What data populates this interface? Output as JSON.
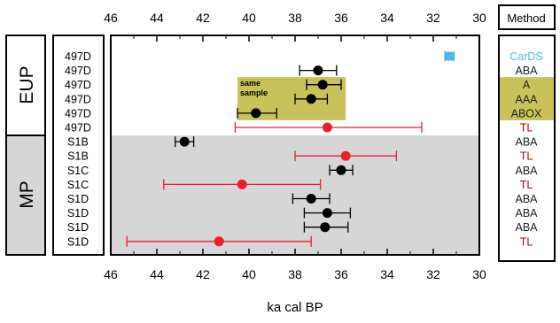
{
  "chart_data": {
    "type": "scatter",
    "title": "",
    "xlabel": "ka cal BP",
    "ylabel": "",
    "xlim": [
      46,
      30
    ],
    "x_reversed": true,
    "x_ticks": [
      46,
      44,
      42,
      40,
      38,
      36,
      34,
      32,
      30
    ],
    "x_tick_labels": [
      "46",
      "44",
      "42",
      "40",
      "38",
      "36",
      "34",
      "32",
      "30"
    ],
    "grid": false,
    "method_header": "Method",
    "periods": [
      {
        "label": "EUP",
        "shaded": false,
        "rows": [
          1,
          6
        ]
      },
      {
        "label": "MP",
        "shaded": true,
        "rows": [
          7,
          14
        ]
      }
    ],
    "highlight": {
      "label": "same sample",
      "rows": [
        3,
        5
      ],
      "x_from": 40.5,
      "x_to": 35.8
    },
    "rows": [
      {
        "sample": "497D",
        "method": "CarDS",
        "method_color": "#4fb8e8",
        "value": 31.3,
        "err_low": 31.5,
        "err_high": 31.1,
        "marker_color": "#4fb8e8",
        "marker": "box"
      },
      {
        "sample": "497D",
        "method": "ABA",
        "method_color": "#222222",
        "value": 37.0,
        "err_low": 37.8,
        "err_high": 36.2,
        "marker_color": "#000000",
        "marker": "dot"
      },
      {
        "sample": "497D",
        "method": "A",
        "method_color": "#222222",
        "value": 36.8,
        "err_low": 37.5,
        "err_high": 36.0,
        "marker_color": "#000000",
        "marker": "dot"
      },
      {
        "sample": "497D",
        "method": "AAA",
        "method_color": "#222222",
        "value": 37.3,
        "err_low": 38.0,
        "err_high": 36.6,
        "marker_color": "#000000",
        "marker": "dot"
      },
      {
        "sample": "497D",
        "method": "ABOX",
        "method_color": "#222222",
        "value": 39.7,
        "err_low": 40.5,
        "err_high": 38.8,
        "marker_color": "#000000",
        "marker": "dot"
      },
      {
        "sample": "497D",
        "method": "TL",
        "method_color": "#c00000",
        "value": 36.6,
        "err_low": 40.6,
        "err_high": 32.5,
        "marker_color": "#e8202a",
        "marker": "dot"
      },
      {
        "sample": "S1B",
        "method": "ABA",
        "method_color": "#222222",
        "value": 42.8,
        "err_low": 43.2,
        "err_high": 42.4,
        "marker_color": "#000000",
        "marker": "dot"
      },
      {
        "sample": "S1B",
        "method": "TL",
        "method_color": "#c00000",
        "value": 35.8,
        "err_low": 38.0,
        "err_high": 33.6,
        "marker_color": "#e8202a",
        "marker": "dot"
      },
      {
        "sample": "S1C",
        "method": "ABA",
        "method_color": "#222222",
        "value": 36.0,
        "err_low": 36.5,
        "err_high": 35.5,
        "marker_color": "#000000",
        "marker": "dot"
      },
      {
        "sample": "S1C",
        "method": "TL",
        "method_color": "#c00000",
        "value": 40.3,
        "err_low": 43.7,
        "err_high": 36.9,
        "marker_color": "#e8202a",
        "marker": "dot"
      },
      {
        "sample": "S1D",
        "method": "ABA",
        "method_color": "#222222",
        "value": 37.3,
        "err_low": 38.1,
        "err_high": 36.5,
        "marker_color": "#000000",
        "marker": "dot"
      },
      {
        "sample": "S1D",
        "method": "ABA",
        "method_color": "#222222",
        "value": 36.6,
        "err_low": 37.6,
        "err_high": 35.6,
        "marker_color": "#000000",
        "marker": "dot"
      },
      {
        "sample": "S1D",
        "method": "ABA",
        "method_color": "#222222",
        "value": 36.7,
        "err_low": 37.6,
        "err_high": 35.7,
        "marker_color": "#000000",
        "marker": "dot"
      },
      {
        "sample": "S1D",
        "method": "TL",
        "method_color": "#c00000",
        "value": 41.3,
        "err_low": 45.3,
        "err_high": 37.3,
        "marker_color": "#e8202a",
        "marker": "dot"
      }
    ]
  }
}
